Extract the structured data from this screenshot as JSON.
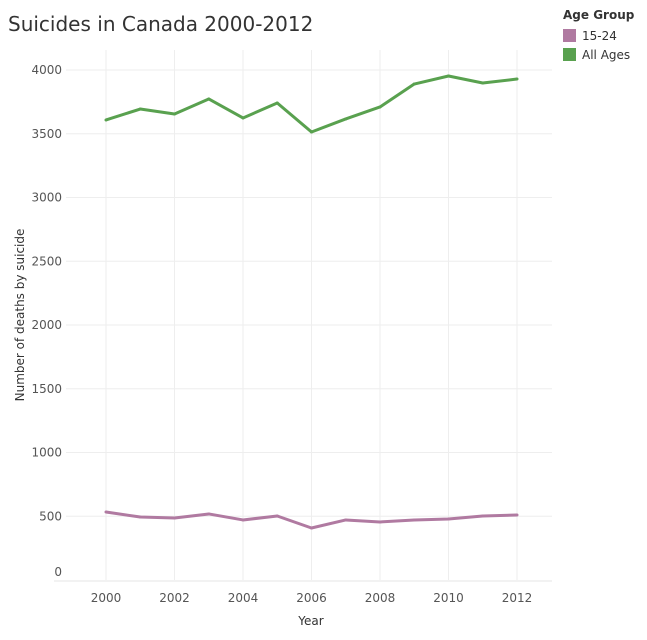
{
  "chart_data": {
    "type": "line",
    "title": "Suicides in Canada 2000-2012",
    "xlabel": "Year",
    "ylabel": "Number of deaths by suicide",
    "x": [
      2000,
      2001,
      2002,
      2003,
      2004,
      2005,
      2006,
      2007,
      2008,
      2009,
      2010,
      2011,
      2012
    ],
    "xticks": [
      2000,
      2002,
      2004,
      2006,
      2008,
      2010,
      2012
    ],
    "yticks": [
      0,
      500,
      1000,
      1500,
      2000,
      2500,
      3000,
      3500,
      4000
    ],
    "xlim": [
      1999,
      2013
    ],
    "ylim": [
      0,
      4000
    ],
    "grid": true,
    "legend": {
      "title": "Age Group",
      "placement": "top-right"
    },
    "series": [
      {
        "name": "15-24",
        "color": "#b07aa1",
        "values": [
          533,
          494,
          486,
          518,
          471,
          502,
          408,
          471,
          455,
          471,
          478,
          502,
          510
        ]
      },
      {
        "name": "All Ages",
        "color": "#59a14f",
        "values": [
          3608,
          3694,
          3655,
          3773,
          3624,
          3741,
          3514,
          3616,
          3710,
          3890,
          3953,
          3898,
          3929
        ]
      }
    ]
  }
}
